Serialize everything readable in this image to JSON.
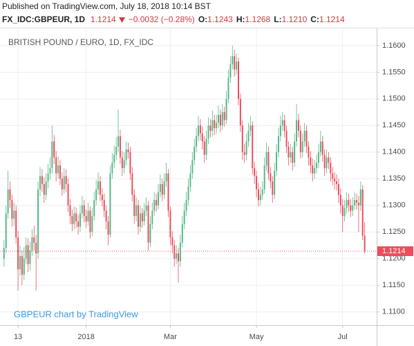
{
  "header": {
    "published": "Published on TradingView.com, July 18, 2018 10:14 BST",
    "symbol": "FX_IDC:GBPEUR, 1D",
    "last": "1.1214",
    "change": "−0.0032 (−0.28%)",
    "ohlc": [
      {
        "label": "O:",
        "value": "1.1243"
      },
      {
        "label": "H:",
        "value": "1.1268"
      },
      {
        "label": "L:",
        "value": "1.1210"
      },
      {
        "label": "C:",
        "value": "1.1214"
      }
    ]
  },
  "chart_data": {
    "type": "candlestick",
    "title": "BRITISH POUND / EURO, 1D, FX_IDC",
    "watermark": "GBPEUR chart by TradingView",
    "up_color": "#53b987",
    "down_color": "#eb4d5c",
    "last_price": 1.1214,
    "last_price_color": "#ec4d5c",
    "grid": true,
    "xlim": [
      -2,
      186
    ],
    "xticks": [
      {
        "value": 7,
        "label": "13"
      },
      {
        "value": 41,
        "label": "2018"
      },
      {
        "value": 83,
        "label": "Mar"
      },
      {
        "value": 126,
        "label": "May"
      },
      {
        "value": 169,
        "label": "Jul"
      }
    ],
    "ylim": [
      1.1075,
      1.1631
    ],
    "yticks": [
      {
        "value": 1.11,
        "label": "1.1100"
      },
      {
        "value": 1.115,
        "label": "1.1150"
      },
      {
        "value": 1.12,
        "label": "1.1200"
      },
      {
        "value": 1.125,
        "label": "1.1250"
      },
      {
        "value": 1.13,
        "label": "1.1300"
      },
      {
        "value": 1.135,
        "label": "1.1350"
      },
      {
        "value": 1.14,
        "label": "1.1400"
      },
      {
        "value": 1.145,
        "label": "1.1450"
      },
      {
        "value": 1.15,
        "label": "1.1500"
      },
      {
        "value": 1.155,
        "label": "1.1550"
      },
      {
        "value": 1.16,
        "label": "1.1600"
      }
    ],
    "open": [
      1.12,
      1.122,
      1.1285,
      1.133,
      1.131,
      1.1275,
      1.129,
      1.124,
      1.118,
      1.1205,
      1.117,
      1.12,
      1.1225,
      1.119,
      1.1215,
      1.124,
      1.123,
      1.121,
      1.133,
      1.1355,
      1.134,
      1.132,
      1.1345,
      1.136,
      1.137,
      1.142,
      1.139,
      1.136,
      1.1375,
      1.135,
      1.133,
      1.1355,
      1.134,
      1.13,
      1.128,
      1.1265,
      1.1285,
      1.127,
      1.126,
      1.1285,
      1.13,
      1.128,
      1.127,
      1.129,
      1.125,
      1.128,
      1.131,
      1.133,
      1.1345,
      1.132,
      1.131,
      1.129,
      1.127,
      1.1245,
      1.136,
      1.138,
      1.1395,
      1.141,
      1.143,
      1.139,
      1.137,
      1.1385,
      1.1405,
      1.14,
      1.136,
      1.132,
      1.128,
      1.13,
      1.126,
      1.1285,
      1.127,
      1.129,
      1.13,
      1.123,
      1.1265,
      1.129,
      1.131,
      1.13,
      1.1325,
      1.134,
      1.132,
      1.1345,
      1.136,
      1.129,
      1.124,
      1.1225,
      1.12,
      1.121,
      1.1195,
      1.123,
      1.1265,
      1.129,
      1.131,
      1.1335,
      1.136,
      1.1385,
      1.141,
      1.143,
      1.145,
      1.1435,
      1.142,
      1.1395,
      1.1425,
      1.145,
      1.144,
      1.146,
      1.1445,
      1.1455,
      1.147,
      1.145,
      1.1475,
      1.146,
      1.15,
      1.154,
      1.1565,
      1.158,
      1.1555,
      1.157,
      1.15,
      1.145,
      1.14,
      1.1395,
      1.142,
      1.144,
      1.145,
      1.137,
      1.1355,
      1.133,
      1.131,
      1.132,
      1.133,
      1.1375,
      1.14,
      1.136,
      1.1345,
      1.132,
      1.1365,
      1.14,
      1.143,
      1.145,
      1.146,
      1.144,
      1.141,
      1.139,
      1.14,
      1.138,
      1.142,
      1.146,
      1.144,
      1.14,
      1.142,
      1.144,
      1.141,
      1.139,
      1.1375,
      1.136,
      1.137,
      1.138,
      1.14,
      1.142,
      1.1395,
      1.137,
      1.139,
      1.138,
      1.136,
      1.135,
      1.1345,
      1.134,
      1.132,
      1.13,
      1.128,
      1.1295,
      1.131,
      1.13,
      1.129,
      1.13,
      1.131,
      1.1305,
      1.13,
      1.133,
      1.1243
    ],
    "high": [
      1.1235,
      1.13,
      1.1365,
      1.1345,
      1.132,
      1.1305,
      1.13,
      1.1252,
      1.1225,
      1.1215,
      1.1222,
      1.124,
      1.1238,
      1.1232,
      1.1255,
      1.1262,
      1.1245,
      1.1345,
      1.1372,
      1.1368,
      1.1352,
      1.136,
      1.1378,
      1.139,
      1.145,
      1.1432,
      1.1402,
      1.1392,
      1.1385,
      1.1362,
      1.137,
      1.1368,
      1.135,
      1.1312,
      1.1292,
      1.1298,
      1.1296,
      1.1282,
      1.13,
      1.1318,
      1.131,
      1.1292,
      1.1305,
      1.1298,
      1.1295,
      1.1325,
      1.1348,
      1.1362,
      1.1355,
      1.1332,
      1.1322,
      1.13,
      1.128,
      1.1375,
      1.1398,
      1.1412,
      1.1428,
      1.148,
      1.1442,
      1.1402,
      1.14,
      1.142,
      1.1418,
      1.141,
      1.1372,
      1.133,
      1.1315,
      1.131,
      1.13,
      1.1295,
      1.1305,
      1.1315,
      1.1308,
      1.128,
      1.1305,
      1.1325,
      1.1322,
      1.134,
      1.1358,
      1.135,
      1.136,
      1.138,
      1.1368,
      1.1298,
      1.1252,
      1.1235,
      1.1225,
      1.122,
      1.1245,
      1.128,
      1.1305,
      1.1325,
      1.135,
      1.1375,
      1.14,
      1.1425,
      1.1445,
      1.1468,
      1.1462,
      1.1448,
      1.143,
      1.144,
      1.1465,
      1.1462,
      1.1478,
      1.147,
      1.147,
      1.1488,
      1.148,
      1.149,
      1.1485,
      1.1515,
      1.1555,
      1.158,
      1.16,
      1.1592,
      1.1585,
      1.1578,
      1.151,
      1.146,
      1.1415,
      1.1435,
      1.1455,
      1.1468,
      1.1458,
      1.1382,
      1.1365,
      1.1342,
      1.1335,
      1.1345,
      1.139,
      1.1418,
      1.141,
      1.1372,
      1.1355,
      1.138,
      1.1415,
      1.1445,
      1.1468,
      1.1475,
      1.147,
      1.145,
      1.142,
      1.1415,
      1.141,
      1.1435,
      1.149,
      1.1472,
      1.145,
      1.1435,
      1.1455,
      1.145,
      1.142,
      1.1402,
      1.1388,
      1.1385,
      1.1395,
      1.1415,
      1.144,
      1.143,
      1.1405,
      1.1405,
      1.14,
      1.139,
      1.1372,
      1.1362,
      1.1358,
      1.135,
      1.1332,
      1.1312,
      1.131,
      1.1325,
      1.1322,
      1.1312,
      1.1315,
      1.1325,
      1.1322,
      1.1318,
      1.1345,
      1.1338,
      1.1268
    ],
    "low": [
      1.1185,
      1.121,
      1.1275,
      1.1295,
      1.126,
      1.1262,
      1.1228,
      1.114,
      1.1168,
      1.115,
      1.116,
      1.119,
      1.1175,
      1.1178,
      1.1205,
      1.1215,
      1.114,
      1.12,
      1.1318,
      1.1325,
      1.1305,
      1.131,
      1.1332,
      1.1348,
      1.136,
      1.1378,
      1.1345,
      1.135,
      1.1338,
      1.1318,
      1.1322,
      1.1325,
      1.1288,
      1.1265,
      1.1252,
      1.1255,
      1.1258,
      1.1245,
      1.125,
      1.1275,
      1.1268,
      1.1258,
      1.1262,
      1.1238,
      1.1242,
      1.1272,
      1.13,
      1.132,
      1.1308,
      1.1298,
      1.1278,
      1.1255,
      1.1225,
      1.124,
      1.135,
      1.137,
      1.1385,
      1.14,
      1.1378,
      1.1355,
      1.136,
      1.1375,
      1.1388,
      1.1348,
      1.1308,
      1.1265,
      1.127,
      1.1245,
      1.125,
      1.1258,
      1.1262,
      1.128,
      1.1215,
      1.1222,
      1.1255,
      1.128,
      1.1288,
      1.1292,
      1.1315,
      1.1308,
      1.1312,
      1.1335,
      1.1278,
      1.1225,
      1.121,
      1.1185,
      1.119,
      1.1155,
      1.1185,
      1.1222,
      1.1255,
      1.128,
      1.13,
      1.1325,
      1.135,
      1.1375,
      1.14,
      1.142,
      1.1422,
      1.1405,
      1.138,
      1.1385,
      1.1415,
      1.1428,
      1.143,
      1.1432,
      1.1435,
      1.1445,
      1.1438,
      1.1442,
      1.1448,
      1.1452,
      1.1492,
      1.153,
      1.1555,
      1.1542,
      1.1545,
      1.1488,
      1.1438,
      1.1385,
      1.138,
      1.1385,
      1.141,
      1.143,
      1.1358,
      1.134,
      1.1315,
      1.1298,
      1.13,
      1.131,
      1.1322,
      1.1365,
      1.1348,
      1.1332,
      1.1305,
      1.1312,
      1.1355,
      1.139,
      1.142,
      1.144,
      1.1428,
      1.1398,
      1.1375,
      1.138,
      1.1365,
      1.1372,
      1.141,
      1.1428,
      1.1388,
      1.139,
      1.141,
      1.1398,
      1.1375,
      1.136,
      1.1345,
      1.135,
      1.136,
      1.137,
      1.1392,
      1.1382,
      1.1355,
      1.136,
      1.1368,
      1.1345,
      1.1338,
      1.133,
      1.1328,
      1.1305,
      1.1285,
      1.125,
      1.127,
      1.1285,
      1.1288,
      1.1278,
      1.128,
      1.1292,
      1.1292,
      1.125,
      1.129,
      1.1235,
      1.121
    ],
    "close": [
      1.122,
      1.1285,
      1.133,
      1.131,
      1.1275,
      1.129,
      1.124,
      1.118,
      1.1205,
      1.117,
      1.12,
      1.1225,
      1.119,
      1.1215,
      1.124,
      1.123,
      1.121,
      1.133,
      1.1355,
      1.134,
      1.132,
      1.1345,
      1.136,
      1.137,
      1.142,
      1.139,
      1.136,
      1.1375,
      1.135,
      1.133,
      1.1355,
      1.134,
      1.13,
      1.128,
      1.1265,
      1.1285,
      1.127,
      1.126,
      1.1285,
      1.13,
      1.128,
      1.127,
      1.129,
      1.125,
      1.128,
      1.131,
      1.133,
      1.1345,
      1.132,
      1.131,
      1.129,
      1.127,
      1.1245,
      1.136,
      1.138,
      1.1395,
      1.141,
      1.143,
      1.139,
      1.137,
      1.1385,
      1.1405,
      1.14,
      1.136,
      1.132,
      1.128,
      1.13,
      1.126,
      1.1285,
      1.127,
      1.129,
      1.13,
      1.123,
      1.1265,
      1.129,
      1.131,
      1.13,
      1.1325,
      1.134,
      1.132,
      1.1345,
      1.136,
      1.129,
      1.124,
      1.1225,
      1.12,
      1.121,
      1.1195,
      1.123,
      1.1265,
      1.129,
      1.131,
      1.1335,
      1.136,
      1.1385,
      1.141,
      1.143,
      1.145,
      1.1435,
      1.142,
      1.1395,
      1.1425,
      1.145,
      1.144,
      1.146,
      1.1445,
      1.1455,
      1.147,
      1.145,
      1.1475,
      1.146,
      1.15,
      1.154,
      1.1565,
      1.158,
      1.1555,
      1.157,
      1.15,
      1.145,
      1.14,
      1.1395,
      1.142,
      1.144,
      1.145,
      1.137,
      1.1355,
      1.133,
      1.131,
      1.132,
      1.133,
      1.1375,
      1.14,
      1.136,
      1.1345,
      1.132,
      1.1365,
      1.14,
      1.143,
      1.145,
      1.146,
      1.144,
      1.141,
      1.139,
      1.14,
      1.138,
      1.142,
      1.146,
      1.144,
      1.14,
      1.142,
      1.144,
      1.141,
      1.139,
      1.1375,
      1.136,
      1.137,
      1.138,
      1.14,
      1.142,
      1.1395,
      1.137,
      1.139,
      1.138,
      1.136,
      1.135,
      1.1345,
      1.134,
      1.132,
      1.13,
      1.128,
      1.1295,
      1.131,
      1.13,
      1.129,
      1.13,
      1.131,
      1.1305,
      1.13,
      1.133,
      1.1243,
      1.1214
    ]
  }
}
